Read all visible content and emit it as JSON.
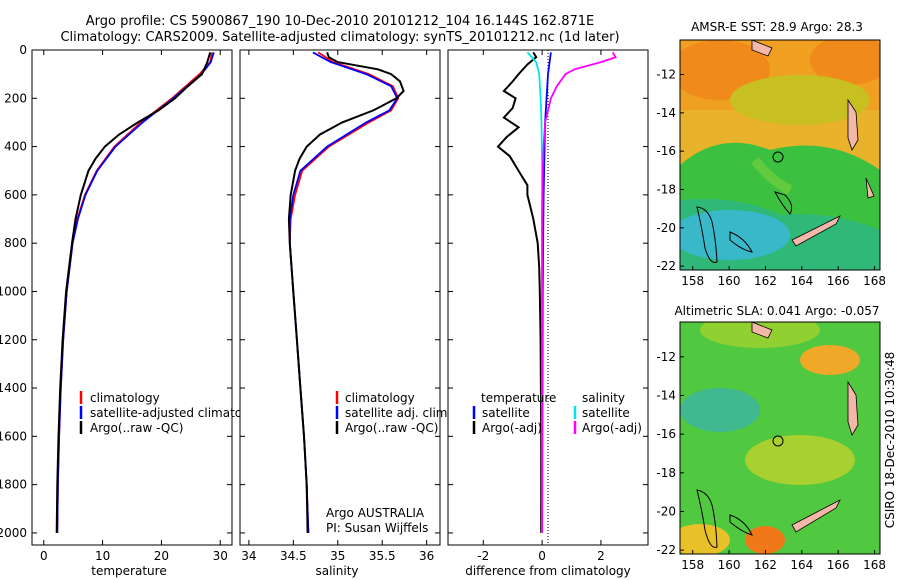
{
  "title": {
    "line1": "Argo profile: CS 5900867_190 10-Dec-2010 20101212_104 16.144S 162.871E",
    "line2": "Climatology: CARS2009. Satellite-adjusted climatology: synTS_20101212.nc (1d later)"
  },
  "colors": {
    "climatology": "#ff0000",
    "adjusted": "#0000ff",
    "argo": "#000000",
    "temp_sat": "#0000ff",
    "sal_sat": "#00e5ee",
    "sal_argo": "#ff00ff"
  },
  "chart_data": [
    {
      "type": "line",
      "name": "temperature-profile",
      "xlabel": "temperature",
      "xlim": [
        -2,
        32
      ],
      "ylim": [
        0,
        2050
      ],
      "xticks": [
        0,
        10,
        20,
        30
      ],
      "yticks": [
        0,
        200,
        400,
        600,
        800,
        1000,
        1200,
        1400,
        1600,
        1800,
        2000
      ],
      "legend": [
        "climatology",
        "satellite-adjusted climatology",
        "Argo(..raw -QC)"
      ],
      "series": [
        {
          "name": "climatology",
          "color": "#ff0000",
          "depth": [
            10,
            50,
            100,
            200,
            300,
            400,
            500,
            600,
            700,
            800,
            1000,
            1200,
            1400,
            1600,
            1800,
            2000
          ],
          "values": [
            28.6,
            28.3,
            26.5,
            21.8,
            16.5,
            12.0,
            9.0,
            7.0,
            5.7,
            4.9,
            3.9,
            3.3,
            2.9,
            2.6,
            2.4,
            2.3
          ]
        },
        {
          "name": "satellite-adjusted climatology",
          "color": "#0000ff",
          "depth": [
            10,
            50,
            100,
            200,
            300,
            400,
            500,
            600,
            700,
            800,
            1000,
            1200,
            1400,
            1600,
            1800,
            2000
          ],
          "values": [
            28.9,
            28.4,
            26.8,
            22.0,
            16.8,
            12.2,
            9.1,
            7.1,
            5.8,
            4.9,
            3.9,
            3.3,
            2.9,
            2.6,
            2.4,
            2.3
          ]
        },
        {
          "name": "Argo(..raw -QC)",
          "color": "#000000",
          "depth": [
            10,
            50,
            100,
            150,
            200,
            250,
            300,
            350,
            400,
            450,
            500,
            600,
            700,
            800,
            1000,
            1200,
            1400,
            1600,
            1800,
            2000
          ],
          "values": [
            28.3,
            27.8,
            26.9,
            24.5,
            22.3,
            19.5,
            16.0,
            12.8,
            10.4,
            8.8,
            7.6,
            6.3,
            5.4,
            4.8,
            3.8,
            3.2,
            2.8,
            2.5,
            2.3,
            2.2
          ]
        }
      ]
    },
    {
      "type": "line",
      "name": "salinity-profile",
      "xlabel": "salinity",
      "xlim": [
        33.9,
        36.15
      ],
      "ylim": [
        0,
        2050
      ],
      "xticks": [
        34,
        34.5,
        35,
        35.5,
        36
      ],
      "legend": [
        "climatology",
        "satellite adj. clim.",
        "Argo(..raw -QC)"
      ],
      "annotation": [
        "Argo AUSTRALIA",
        "PI: Susan Wijffels"
      ],
      "series": [
        {
          "name": "climatology",
          "color": "#ff0000",
          "depth": [
            10,
            50,
            100,
            150,
            200,
            250,
            300,
            400,
            500,
            600,
            700,
            800,
            1000,
            1200,
            1400,
            1600,
            1800,
            2000
          ],
          "values": [
            34.78,
            34.95,
            35.35,
            35.62,
            35.68,
            35.6,
            35.35,
            34.9,
            34.6,
            34.52,
            34.47,
            34.46,
            34.5,
            34.54,
            34.58,
            34.62,
            34.65,
            34.67
          ]
        },
        {
          "name": "satellite adj. clim.",
          "color": "#0000ff",
          "depth": [
            10,
            50,
            100,
            150,
            200,
            250,
            300,
            400,
            500,
            600,
            700,
            800,
            1000,
            1200,
            1400,
            1600,
            1800,
            2000
          ],
          "values": [
            34.72,
            34.92,
            35.32,
            35.6,
            35.67,
            35.58,
            35.32,
            34.88,
            34.58,
            34.5,
            34.46,
            34.46,
            34.5,
            34.54,
            34.58,
            34.62,
            34.65,
            34.67
          ]
        },
        {
          "name": "Argo(..raw -QC)",
          "color": "#000000",
          "depth": [
            10,
            30,
            50,
            80,
            100,
            130,
            170,
            200,
            250,
            300,
            350,
            400,
            450,
            500,
            600,
            700,
            800,
            1000,
            1200,
            1400,
            1600,
            1800,
            2000
          ],
          "values": [
            34.88,
            34.9,
            35.0,
            35.45,
            35.6,
            35.7,
            35.74,
            35.66,
            35.4,
            35.05,
            34.8,
            34.65,
            34.57,
            34.52,
            34.47,
            34.45,
            34.46,
            34.5,
            34.54,
            34.58,
            34.62,
            34.65,
            34.66
          ]
        }
      ]
    },
    {
      "type": "line",
      "name": "difference-profile",
      "xlabel": "difference from climatology",
      "xlim": [
        -3.2,
        3.6
      ],
      "ylim": [
        0,
        2050
      ],
      "xticks": [
        -2,
        0,
        2
      ],
      "legend_left": [
        "temperature",
        "satellite",
        "Argo(-adj)"
      ],
      "legend_right": [
        "salinity",
        "satellite",
        "Argo(-adj)"
      ],
      "series": [
        {
          "name": "temperature satellite",
          "color": "#0000ff",
          "depth": [
            10,
            100,
            300,
            600,
            1000,
            2000
          ],
          "values": [
            0.3,
            0.2,
            0.1,
            0.05,
            0.02,
            0.0
          ]
        },
        {
          "name": "temperature Argo(-adj)",
          "color": "#000000",
          "depth": [
            10,
            30,
            60,
            100,
            130,
            170,
            200,
            240,
            280,
            320,
            360,
            400,
            440,
            480,
            520,
            560,
            600,
            650,
            700,
            800,
            900,
            1000,
            1200,
            1600,
            2000
          ],
          "values": [
            -0.3,
            -0.2,
            -0.5,
            -0.8,
            -1.0,
            -1.3,
            -0.9,
            -1.0,
            -1.3,
            -0.8,
            -1.2,
            -1.5,
            -1.1,
            -0.9,
            -0.7,
            -0.5,
            -0.5,
            -0.4,
            -0.3,
            -0.15,
            -0.1,
            -0.08,
            -0.05,
            -0.03,
            -0.03
          ]
        },
        {
          "name": "salinity satellite",
          "color": "#00e5ee",
          "depth": [
            10,
            50,
            100,
            200,
            300,
            500,
            800,
            1200,
            2000
          ],
          "values": [
            -0.5,
            -0.2,
            -0.1,
            -0.05,
            -0.02,
            0.0,
            0.0,
            0.0,
            0.0
          ]
        },
        {
          "name": "salinity Argo(-adj)",
          "color": "#ff00ff",
          "depth": [
            10,
            30,
            50,
            80,
            100,
            150,
            200,
            250,
            300,
            400,
            500,
            700,
            1000,
            2000
          ],
          "values": [
            2.4,
            2.5,
            2.0,
            1.1,
            0.8,
            0.5,
            0.3,
            0.2,
            0.1,
            0.05,
            0.02,
            0.0,
            0.0,
            0.0
          ]
        }
      ]
    }
  ],
  "sst_map": {
    "title": "AMSR-E SST: 28.9  Argo: 28.3",
    "xticks": [
      "158",
      "160",
      "162",
      "164",
      "166",
      "168"
    ],
    "yticks": [
      "-12",
      "-14",
      "-16",
      "-18",
      "-20",
      "-22"
    ]
  },
  "sla_map": {
    "title": "Altimetric SLA: 0.041  Argo: -0.057",
    "xticks": [
      "158",
      "160",
      "162",
      "164",
      "166",
      "168"
    ],
    "yticks": [
      "-12",
      "-14",
      "-16",
      "-18",
      "-20",
      "-22"
    ]
  },
  "credit": "CSIRO 18-Dec-2010 10:30:48"
}
